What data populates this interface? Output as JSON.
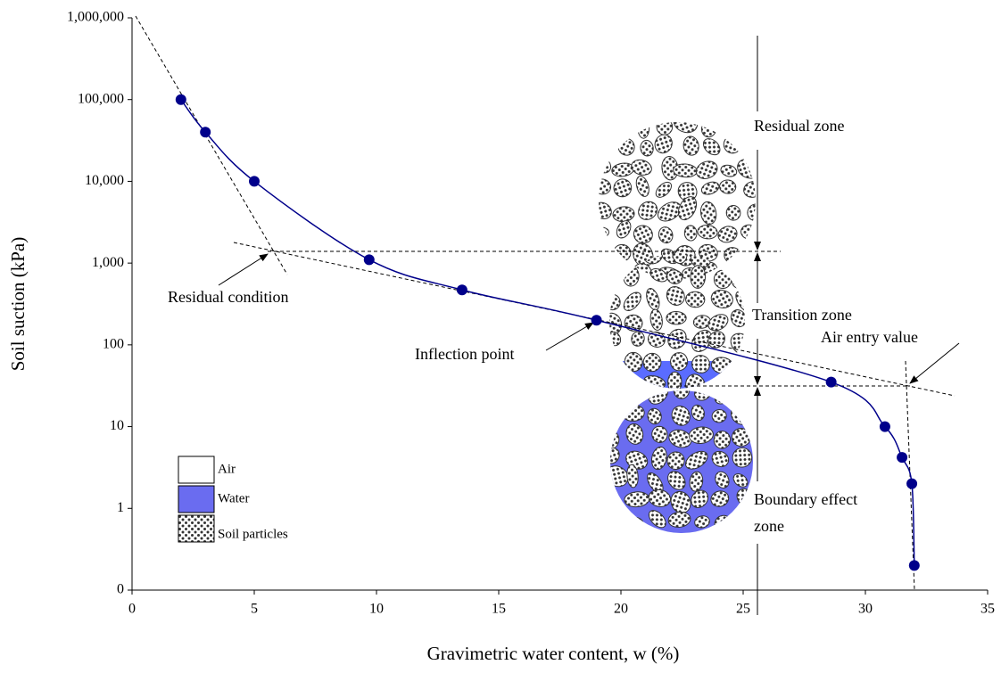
{
  "chart_data": {
    "type": "line",
    "x_label": "Gravimetric water content, w (%)",
    "y_label": "Soil suction (kPa)",
    "x": [
      2,
      3,
      5,
      9.7,
      13.5,
      19,
      28.6,
      30.8,
      31.5,
      31.9,
      32
    ],
    "series": [
      {
        "color": "#00008b",
        "values": [
          100000,
          40000,
          10000,
          1100,
          470,
          200,
          35,
          10,
          4.2,
          2,
          0.2
        ]
      }
    ],
    "xlim": [
      0,
      35
    ],
    "xticks": [
      0,
      5,
      10,
      15,
      20,
      25,
      30,
      35
    ],
    "ylim": [
      0.1,
      1000000
    ],
    "y_log": true,
    "yticks": [
      {
        "value": 0.1,
        "label": "0"
      },
      1,
      10,
      100,
      {
        "value": 1000,
        "label": "1,000"
      },
      {
        "value": 10000,
        "label": "10,000"
      },
      {
        "value": 100000,
        "label": "100,000"
      },
      {
        "value": 1000000,
        "label": "1,000,000"
      }
    ],
    "annotations": [
      "Residual zone",
      "Transition zone",
      "Boundary effect",
      "zone",
      "Air entry value",
      "Inflection point",
      "Residual condition"
    ],
    "illustration_legend": [
      "Air",
      "Water",
      "Soil particles"
    ]
  }
}
